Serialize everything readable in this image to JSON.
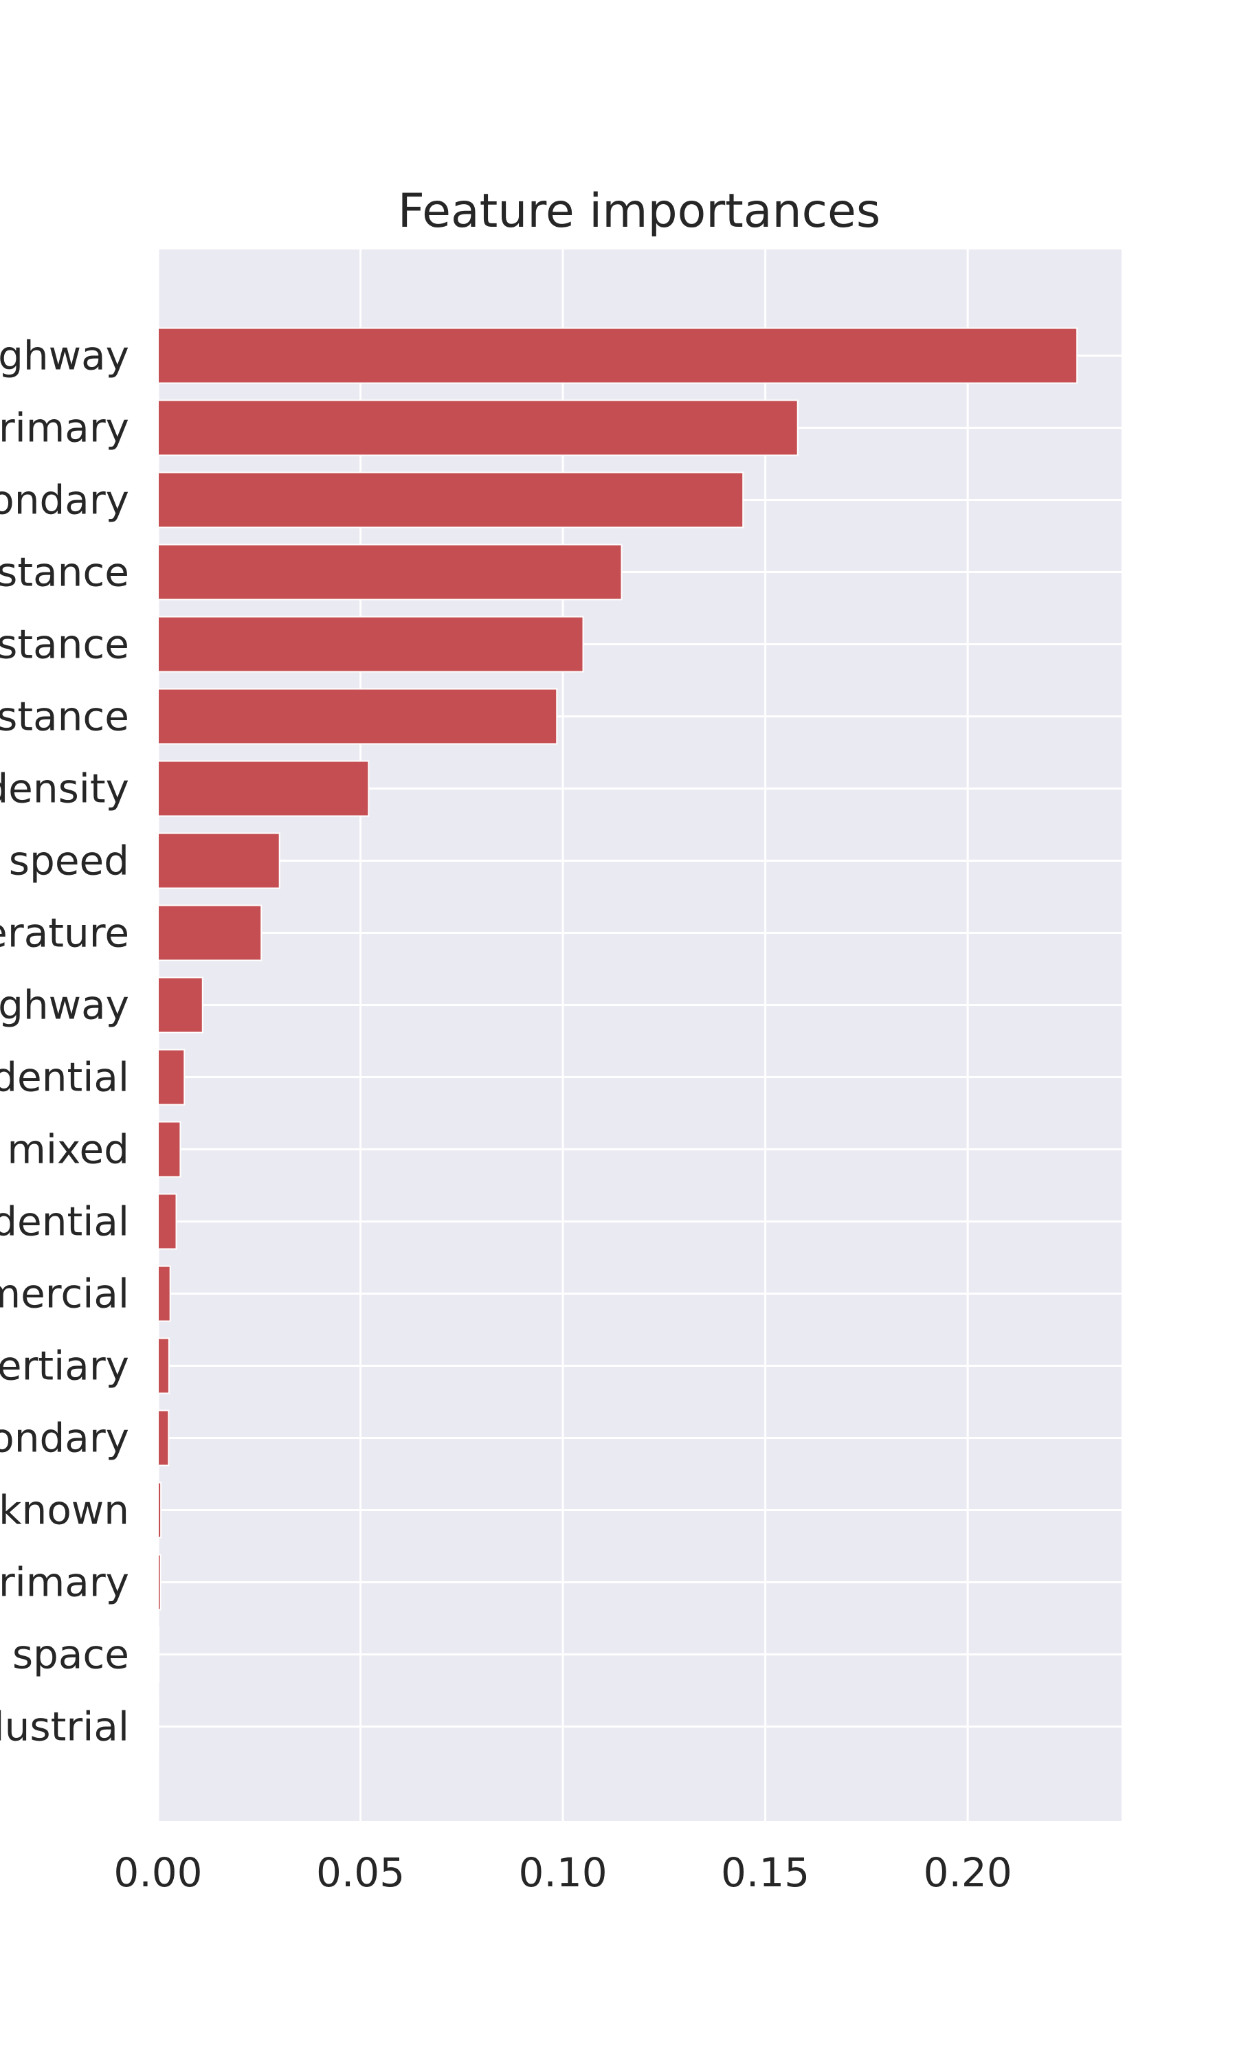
{
  "chart_data": {
    "type": "bar",
    "orientation": "horizontal",
    "title": "Feature importances",
    "xlabel": "",
    "ylabel": "",
    "xlim": [
      0,
      0.238
    ],
    "xticks": [
      0.0,
      0.05,
      0.1,
      0.15,
      0.2
    ],
    "xtick_labels": [
      "0.00",
      "0.05",
      "0.10",
      "0.15",
      "0.20"
    ],
    "grid": true,
    "bar_color": "#c44e52",
    "background_color": "#eaeaf2",
    "grid_color": "#ffffff",
    "categories": [
      "ghway",
      "rimary",
      "ondary",
      "stance",
      "stance",
      "stance",
      "density",
      "speed",
      "erature",
      "ghway",
      "dential",
      "mixed",
      "dential",
      "mercial",
      "ertiary",
      "ondary",
      "known",
      "rimary",
      "space",
      "lustrial"
    ],
    "values": [
      0.227,
      0.158,
      0.1445,
      0.1145,
      0.105,
      0.0985,
      0.052,
      0.03,
      0.0255,
      0.011,
      0.0065,
      0.0055,
      0.0045,
      0.003,
      0.0027,
      0.0026,
      0.0007,
      0.0006,
      0.0002,
      0.0001
    ]
  }
}
